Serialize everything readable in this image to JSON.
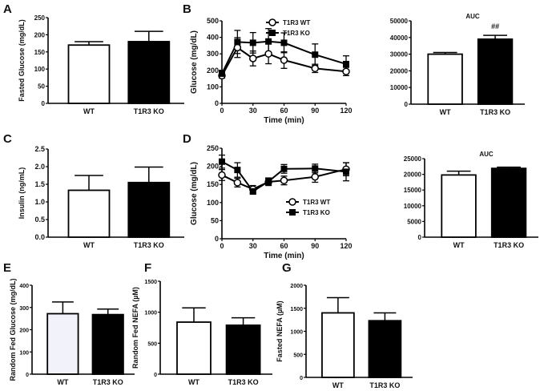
{
  "chart_data": [
    {
      "id": "A",
      "panel_label": "A",
      "type": "bar",
      "title": "",
      "ylabel": "Fasted Glucose (mg/dL)",
      "xlabel": "",
      "ylim": [
        0,
        250
      ],
      "yticks": [
        0,
        50,
        100,
        150,
        200,
        250
      ],
      "categories": [
        "WT",
        "T1R3 KO"
      ],
      "values": [
        170,
        180
      ],
      "errors": [
        10,
        30
      ],
      "fills": [
        "#ffffff",
        "#000000"
      ],
      "annotations": [
        "",
        ""
      ]
    },
    {
      "id": "B",
      "panel_label": "B",
      "type": "line",
      "title": "",
      "ylabel": "Glucose (mg/dL)",
      "xlabel": "Time (min)",
      "xlim": [
        0,
        120
      ],
      "ylim": [
        0,
        500
      ],
      "xticks": [
        0,
        30,
        60,
        90,
        120
      ],
      "yticks": [
        0,
        100,
        200,
        300,
        400,
        500
      ],
      "legend_position": "top-right",
      "x": [
        0,
        15,
        30,
        45,
        60,
        90,
        120
      ],
      "series": [
        {
          "name": "T1R3 WT",
          "marker": "open-circle",
          "values": [
            168,
            338,
            272,
            300,
            262,
            212,
            193
          ],
          "errors": [
            15,
            60,
            45,
            60,
            50,
            25,
            25
          ]
        },
        {
          "name": "T1R3 KO",
          "marker": "filled-square",
          "values": [
            180,
            372,
            367,
            375,
            367,
            295,
            238
          ],
          "errors": [
            20,
            70,
            62,
            78,
            60,
            65,
            50
          ]
        }
      ]
    },
    {
      "id": "B-AUC",
      "panel_label": "",
      "type": "bar",
      "title": "AUC",
      "ylabel": "",
      "xlabel": "",
      "ylim": [
        0,
        50000
      ],
      "yticks": [
        0,
        10000,
        20000,
        30000,
        40000,
        50000
      ],
      "categories": [
        "WT",
        "T1R3 KO"
      ],
      "values": [
        30000,
        39000
      ],
      "errors": [
        1000,
        2300
      ],
      "fills": [
        "#ffffff",
        "#000000"
      ],
      "annotations": [
        "",
        "##"
      ]
    },
    {
      "id": "C",
      "panel_label": "C",
      "type": "bar",
      "title": "",
      "ylabel": "Insulin (ng/mL)",
      "xlabel": "",
      "ylim": [
        0,
        2.5
      ],
      "yticks": [
        "0.0",
        "0.5",
        "1.0",
        "1.5",
        "2.0",
        "2.5"
      ],
      "categories": [
        "WT",
        "T1R3 KO"
      ],
      "values": [
        1.33,
        1.55
      ],
      "errors": [
        0.42,
        0.44
      ],
      "fills": [
        "#ffffff",
        "#000000"
      ],
      "annotations": [
        "",
        ""
      ]
    },
    {
      "id": "D",
      "panel_label": "D",
      "type": "line",
      "title": "",
      "ylabel": "Glucose (mg/dL)",
      "xlabel": "Time (min)",
      "xlim": [
        0,
        120
      ],
      "ylim": [
        0,
        250
      ],
      "xticks": [
        0,
        30,
        60,
        90,
        120
      ],
      "yticks": [
        0,
        50,
        100,
        150,
        200,
        250
      ],
      "legend_position": "center-right",
      "x": [
        0,
        15,
        30,
        45,
        60,
        90,
        120
      ],
      "series": [
        {
          "name": "T1R3 WT",
          "marker": "open-circle",
          "values": [
            176,
            155,
            137,
            157,
            161,
            171,
            192
          ],
          "errors": [
            15,
            12,
            10,
            10,
            12,
            15,
            18
          ]
        },
        {
          "name": "T1R3 KO",
          "marker": "filled-square",
          "values": [
            213,
            190,
            131,
            158,
            193,
            194,
            185
          ],
          "errors": [
            18,
            20,
            8,
            10,
            12,
            12,
            25
          ]
        }
      ]
    },
    {
      "id": "D-AUC",
      "panel_label": "",
      "type": "bar",
      "title": "AUC",
      "ylabel": "",
      "xlabel": "",
      "ylim": [
        0,
        25000
      ],
      "yticks": [
        0,
        5000,
        10000,
        15000,
        20000,
        25000
      ],
      "categories": [
        "WT",
        "T1R3 KO"
      ],
      "values": [
        19800,
        21900
      ],
      "errors": [
        1200,
        400
      ],
      "fills": [
        "#ffffff",
        "#000000"
      ],
      "annotations": [
        "",
        ""
      ]
    },
    {
      "id": "E",
      "panel_label": "E",
      "type": "bar",
      "title": "",
      "ylabel": "Random Fed Glucose (mg/dL)",
      "xlabel": "",
      "ylim": [
        0,
        400
      ],
      "yticks": [
        0,
        100,
        200,
        300,
        400
      ],
      "categories": [
        "WT",
        "T1R3 KO"
      ],
      "values": [
        272,
        268
      ],
      "errors": [
        53,
        25
      ],
      "fills": [
        "#f2f2fa",
        "#000000"
      ],
      "annotations": [
        "",
        ""
      ]
    },
    {
      "id": "F",
      "panel_label": "F",
      "type": "bar",
      "title": "",
      "ylabel": "Random Fed NEFA (µM)",
      "xlabel": "",
      "ylim": [
        0,
        1500
      ],
      "yticks": [
        0,
        500,
        1000,
        1500
      ],
      "categories": [
        "WT",
        "T1R3 KO"
      ],
      "values": [
        840,
        790
      ],
      "errors": [
        230,
        120
      ],
      "fills": [
        "#ffffff",
        "#000000"
      ],
      "annotations": [
        "",
        ""
      ]
    },
    {
      "id": "G",
      "panel_label": "G",
      "type": "bar",
      "title": "",
      "ylabel": "Fasted NEFA (µM)",
      "xlabel": "",
      "ylim": [
        0,
        2000
      ],
      "yticks": [
        0,
        500,
        1000,
        1500,
        2000
      ],
      "categories": [
        "WT",
        "T1R3 KO"
      ],
      "values": [
        1400,
        1230
      ],
      "errors": [
        330,
        170
      ],
      "fills": [
        "#ffffff",
        "#000000"
      ],
      "annotations": [
        "",
        ""
      ]
    }
  ]
}
